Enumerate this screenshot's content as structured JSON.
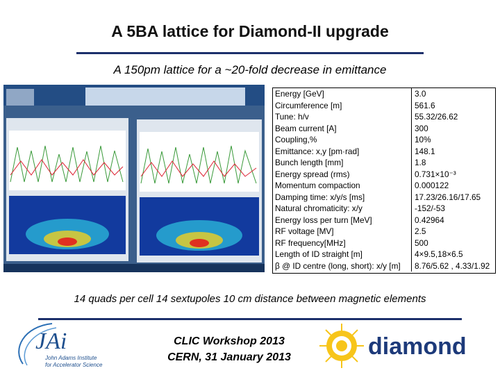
{
  "title": "A 5BA lattice for Diamond-II upgrade",
  "subtitle": "A 150pm lattice for a ~20-fold decrease in emittance",
  "table": {
    "rows": [
      [
        "Energy [GeV]",
        "3.0"
      ],
      [
        "Circumference [m]",
        "561.6"
      ],
      [
        "Tune: h/v",
        "55.32/26.62"
      ],
      [
        "Beam current [A]",
        "300"
      ],
      [
        "Coupling,%",
        "10%"
      ],
      [
        "Emittance: x,y [pm·rad]",
        "148.1"
      ],
      [
        "Bunch length [mm]",
        "1.8"
      ],
      [
        "Energy spread (rms)",
        "0.731×10⁻³"
      ],
      [
        "Momentum compaction",
        "0.000122"
      ],
      [
        "Damping time: x/y/s [ms]",
        "17.23/26.16/17.65"
      ],
      [
        "Natural chromaticity: x/y",
        "-152/-53"
      ],
      [
        "Energy loss per turn [MeV]",
        "0.42964"
      ],
      [
        "RF voltage [MV]",
        "2.5"
      ],
      [
        "RF frequency[MHz]",
        "500"
      ],
      [
        "Length of ID straight [m]",
        "4×9.5,18×6.5"
      ],
      [
        "β @ ID centre (long, short): x/y [m]",
        "8.76/5.62 ,  4.33/1.92"
      ]
    ]
  },
  "note": "14 quads per cell 14  sextupoles 10 cm distance between magnetic elements",
  "footer": {
    "line1": "CLIC Workshop 2013",
    "line2": "CERN, 31 January 2013"
  },
  "logos": {
    "jai_mark": "JAi",
    "jai_line1": "John Adams Institute",
    "jai_line2": "for Accelerator Science",
    "diamond": "diamond"
  }
}
